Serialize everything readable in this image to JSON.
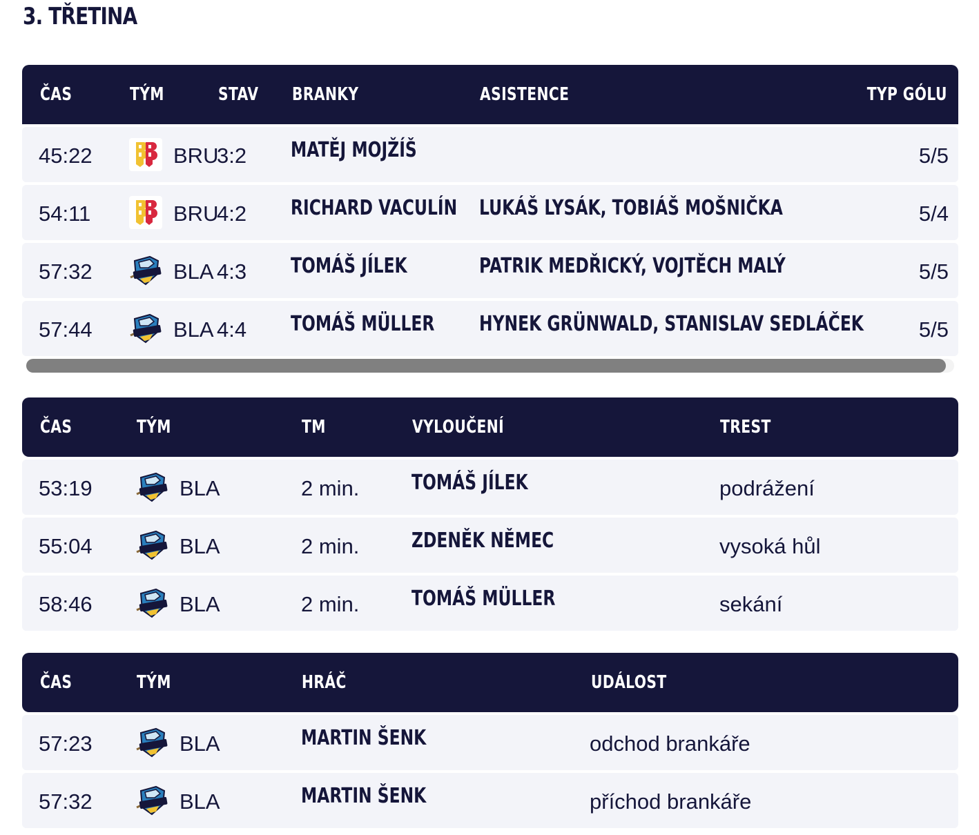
{
  "page": {
    "title": "3. TŘETINA"
  },
  "teams": {
    "BRU": {
      "code": "BRU",
      "icon": "bru-logo-icon"
    },
    "BLA": {
      "code": "BLA",
      "icon": "rytiri-logo-icon",
      "logo_text": "RYTÍŘI"
    }
  },
  "goals": {
    "headers": {
      "time": "ČAS",
      "team": "TÝM",
      "score": "STAV",
      "scorer": "BRANKY",
      "assists": "ASISTENCE",
      "type": "TYP GÓLU"
    },
    "rows": [
      {
        "time": "45:22",
        "team": "BRU",
        "score": "3:2",
        "scorer": "MATĚJ MOJŽÍŠ",
        "assists": "",
        "type": "5/5"
      },
      {
        "time": "54:11",
        "team": "BRU",
        "score": "4:2",
        "scorer": "RICHARD VACULÍN",
        "assists": "LUKÁŠ LYSÁK, TOBIÁŠ MOŠNIČKA",
        "type": "5/4"
      },
      {
        "time": "57:32",
        "team": "BLA",
        "score": "4:3",
        "scorer": "TOMÁŠ JÍLEK",
        "assists": "PATRIK MEDŘICKÝ, VOJTĚCH MALÝ",
        "type": "5/5"
      },
      {
        "time": "57:44",
        "team": "BLA",
        "score": "4:4",
        "scorer": "TOMÁŠ MÜLLER",
        "assists": "HYNEK GRÜNWALD, STANISLAV SEDLÁČEK",
        "type": "5/5"
      }
    ]
  },
  "penalties": {
    "headers": {
      "time": "ČAS",
      "team": "TÝM",
      "duration": "TM",
      "player": "VYLOUČENÍ",
      "reason": "TREST"
    },
    "rows": [
      {
        "time": "53:19",
        "team": "BLA",
        "duration": "2 min.",
        "player": "TOMÁŠ JÍLEK",
        "reason": "podrážení"
      },
      {
        "time": "55:04",
        "team": "BLA",
        "duration": "2 min.",
        "player": "ZDENĚK NĚMEC",
        "reason": "vysoká hůl"
      },
      {
        "time": "58:46",
        "team": "BLA",
        "duration": "2 min.",
        "player": "TOMÁŠ MÜLLER",
        "reason": "sekání"
      }
    ]
  },
  "events": {
    "headers": {
      "time": "ČAS",
      "team": "TÝM",
      "player": "HRÁČ",
      "event": "UDÁLOST"
    },
    "rows": [
      {
        "time": "57:23",
        "team": "BLA",
        "player": "MARTIN ŠENK",
        "event": "odchod brankáře"
      },
      {
        "time": "57:32",
        "team": "BLA",
        "player": "MARTIN ŠENK",
        "event": "příchod brankáře"
      }
    ]
  },
  "colors": {
    "header_bg": "#15163a",
    "row_bg": "#f3f4f9",
    "text": "#15163a",
    "scrollbar": "#808080"
  }
}
